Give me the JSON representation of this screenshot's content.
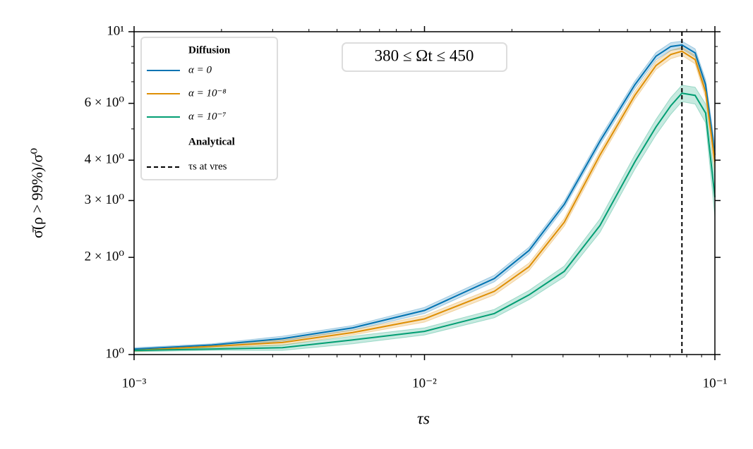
{
  "chart_data": {
    "type": "line",
    "annotation": "380 ≤ Ωt ≤ 450",
    "x_label": "τs",
    "y_label": "σ̄(ρ > 99%)/σ⁰",
    "log_x": true,
    "log_y": true,
    "xlim": [
      0.001,
      0.1
    ],
    "ylim": [
      1,
      10
    ],
    "xticks": [
      {
        "value": 0.001,
        "label": "10⁻³"
      },
      {
        "value": 0.01,
        "label": "10⁻²"
      },
      {
        "value": 0.1,
        "label": "10⁻¹"
      }
    ],
    "yticks": [
      {
        "value": 1,
        "label": "10⁰"
      },
      {
        "value": 2,
        "label": "2 × 10⁰"
      },
      {
        "value": 3,
        "label": "3 × 10⁰"
      },
      {
        "value": 4,
        "label": "4 × 10⁰"
      },
      {
        "value": 6,
        "label": "6 × 10⁰"
      },
      {
        "value": 10,
        "label": "10¹"
      }
    ],
    "x": [
      0.001,
      0.00185,
      0.00324,
      0.00566,
      0.01,
      0.0174,
      0.0229,
      0.0303,
      0.0402,
      0.053,
      0.0627,
      0.0705,
      0.077,
      0.0855,
      0.0929,
      0.1
    ],
    "legend_groups": [
      "Diffusion",
      "Analytical"
    ],
    "series": [
      {
        "name": "α = 0",
        "color": "#0173b2",
        "values": [
          1.04,
          1.07,
          1.12,
          1.21,
          1.37,
          1.72,
          2.1,
          2.92,
          4.58,
          6.85,
          8.4,
          9.0,
          9.1,
          8.6,
          6.85,
          4.15
        ],
        "errors": [
          0.01,
          0.01,
          0.02,
          0.02,
          0.03,
          0.04,
          0.05,
          0.07,
          0.12,
          0.18,
          0.22,
          0.25,
          0.25,
          0.25,
          0.25,
          0.3
        ]
      },
      {
        "name": "α = 10⁻⁸",
        "color": "#de8f05",
        "values": [
          1.03,
          1.06,
          1.09,
          1.17,
          1.29,
          1.57,
          1.87,
          2.57,
          4.15,
          6.35,
          7.86,
          8.5,
          8.7,
          8.2,
          6.5,
          3.95
        ],
        "errors": [
          0.01,
          0.01,
          0.02,
          0.02,
          0.03,
          0.04,
          0.05,
          0.07,
          0.12,
          0.18,
          0.22,
          0.25,
          0.25,
          0.25,
          0.25,
          0.3
        ]
      },
      {
        "name": "α = 10⁻⁷",
        "color": "#029e73",
        "values": [
          1.03,
          1.04,
          1.05,
          1.11,
          1.18,
          1.34,
          1.53,
          1.81,
          2.51,
          3.95,
          5.07,
          5.9,
          6.45,
          6.35,
          5.6,
          3.07
        ],
        "errors": [
          0.01,
          0.01,
          0.02,
          0.03,
          0.03,
          0.04,
          0.05,
          0.07,
          0.12,
          0.2,
          0.28,
          0.35,
          0.38,
          0.38,
          0.38,
          0.4
        ]
      }
    ],
    "vline": {
      "x": 0.077,
      "name": "τs at νres",
      "color": "#000000"
    }
  }
}
